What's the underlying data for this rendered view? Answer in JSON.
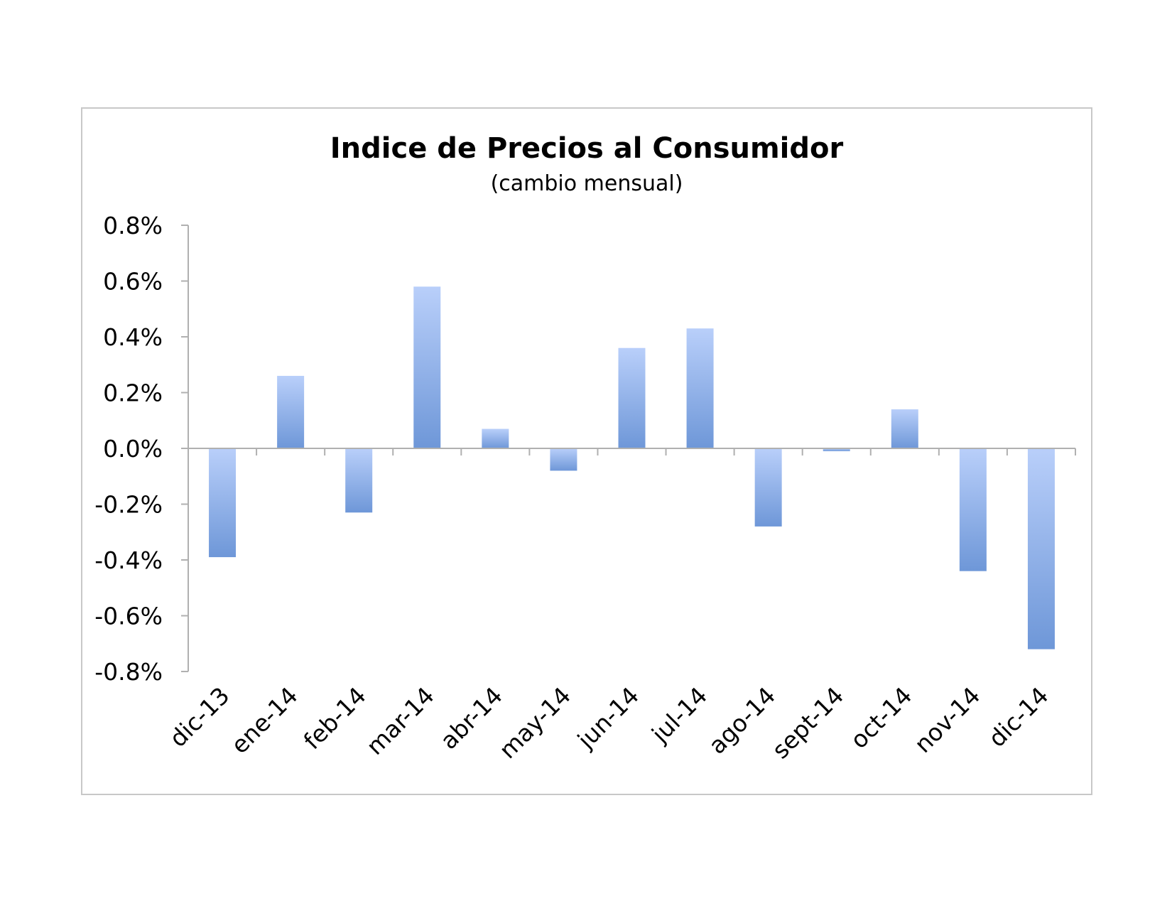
{
  "chart_data": {
    "type": "bar",
    "title": "Indice de Precios al Consumidor",
    "subtitle": "(cambio mensual)",
    "xlabel": "",
    "ylabel": "",
    "categories": [
      "dic-13",
      "ene-14",
      "feb-14",
      "mar-14",
      "abr-14",
      "may-14",
      "jun-14",
      "jul-14",
      "ago-14",
      "sept-14",
      "oct-14",
      "nov-14",
      "dic-14"
    ],
    "values": [
      -0.39,
      0.26,
      -0.23,
      0.58,
      0.07,
      -0.08,
      0.36,
      0.43,
      -0.28,
      -0.01,
      0.14,
      -0.44,
      -0.72
    ],
    "value_unit": "%",
    "ylim": [
      -0.8,
      0.8
    ],
    "yticks": [
      0.8,
      0.6,
      0.4,
      0.2,
      0.0,
      -0.2,
      -0.4,
      -0.6,
      -0.8
    ],
    "ytick_labels": [
      "0.8%",
      "0.6%",
      "0.4%",
      "0.2%",
      "0.0%",
      "-0.2%",
      "-0.4%",
      "-0.6%",
      "-0.8%"
    ],
    "grid": false,
    "legend": "none",
    "colors": {
      "bar_light": "#b9cffa",
      "bar_dark": "#6e97d8",
      "axis": "#b0b0b0",
      "frame": "#c8c8c8"
    }
  }
}
